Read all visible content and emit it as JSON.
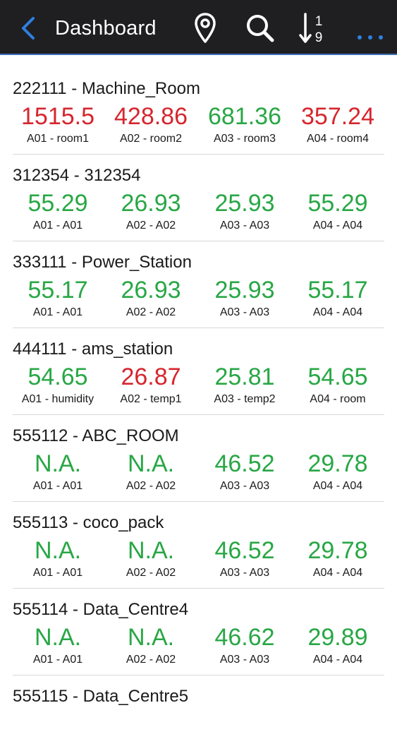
{
  "header": {
    "title": "Dashboard",
    "icons": [
      "back-icon",
      "location-icon",
      "search-icon",
      "sort-numeric-icon",
      "more-icon"
    ],
    "accent": "#2f7fe0",
    "background": "#1f1f21"
  },
  "colors": {
    "alarm": "#d6262e",
    "normal": "#28a745"
  },
  "rows": [
    {
      "title": "222111 - Machine_Room",
      "readings": [
        {
          "value": "1515.5",
          "label": "A01 - room1",
          "status": "red"
        },
        {
          "value": "428.86",
          "label": "A02 - room2",
          "status": "red"
        },
        {
          "value": "681.36",
          "label": "A03 - room3",
          "status": "green"
        },
        {
          "value": "357.24",
          "label": "A04 - room4",
          "status": "red"
        }
      ]
    },
    {
      "title": "312354 - 312354",
      "readings": [
        {
          "value": "55.29",
          "label": "A01 - A01",
          "status": "green"
        },
        {
          "value": "26.93",
          "label": "A02 - A02",
          "status": "green"
        },
        {
          "value": "25.93",
          "label": "A03 - A03",
          "status": "green"
        },
        {
          "value": "55.29",
          "label": "A04 - A04",
          "status": "green"
        }
      ]
    },
    {
      "title": "333111 - Power_Station",
      "readings": [
        {
          "value": "55.17",
          "label": "A01 - A01",
          "status": "green"
        },
        {
          "value": "26.93",
          "label": "A02 - A02",
          "status": "green"
        },
        {
          "value": "25.93",
          "label": "A03 - A03",
          "status": "green"
        },
        {
          "value": "55.17",
          "label": "A04 - A04",
          "status": "green"
        }
      ]
    },
    {
      "title": "444111 - ams_station",
      "readings": [
        {
          "value": "54.65",
          "label": "A01 - humidity",
          "status": "green"
        },
        {
          "value": "26.87",
          "label": "A02 - temp1",
          "status": "red"
        },
        {
          "value": "25.81",
          "label": "A03 - temp2",
          "status": "green"
        },
        {
          "value": "54.65",
          "label": "A04 - room",
          "status": "green"
        }
      ]
    },
    {
      "title": "555112 - ABC_ROOM",
      "readings": [
        {
          "value": "N.A.",
          "label": "A01 - A01",
          "status": "green"
        },
        {
          "value": "N.A.",
          "label": "A02 - A02",
          "status": "green"
        },
        {
          "value": "46.52",
          "label": "A03 - A03",
          "status": "green"
        },
        {
          "value": "29.78",
          "label": "A04 - A04",
          "status": "green"
        }
      ]
    },
    {
      "title": "555113 - coco_pack",
      "readings": [
        {
          "value": "N.A.",
          "label": "A01 - A01",
          "status": "green"
        },
        {
          "value": "N.A.",
          "label": "A02 - A02",
          "status": "green"
        },
        {
          "value": "46.52",
          "label": "A03 - A03",
          "status": "green"
        },
        {
          "value": "29.78",
          "label": "A04 - A04",
          "status": "green"
        }
      ]
    },
    {
      "title": "555114 - Data_Centre4",
      "readings": [
        {
          "value": "N.A.",
          "label": "A01 - A01",
          "status": "green"
        },
        {
          "value": "N.A.",
          "label": "A02 - A02",
          "status": "green"
        },
        {
          "value": "46.62",
          "label": "A03 - A03",
          "status": "green"
        },
        {
          "value": "29.89",
          "label": "A04 - A04",
          "status": "green"
        }
      ]
    },
    {
      "title": "555115 - Data_Centre5",
      "readings": []
    }
  ]
}
